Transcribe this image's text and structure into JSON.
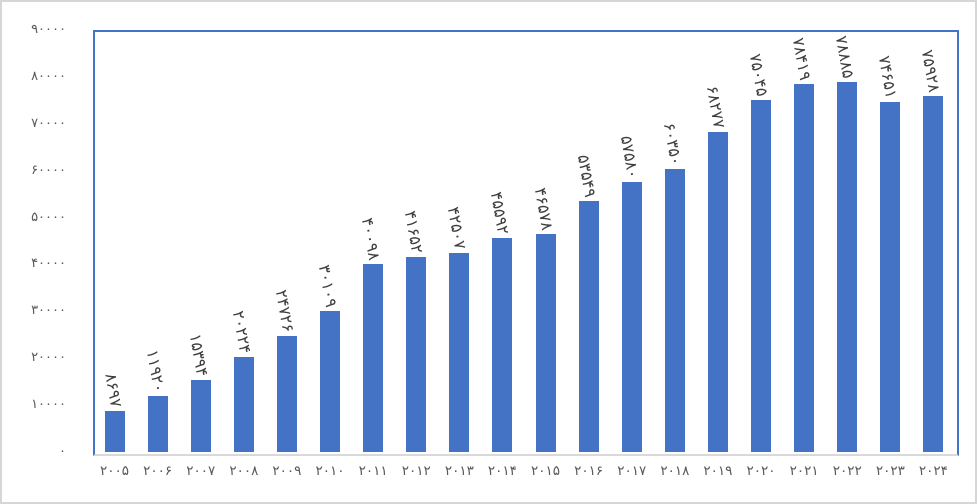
{
  "chart_data": {
    "type": "bar",
    "title": "",
    "xlabel": "",
    "ylabel": "",
    "legend": "none",
    "grid": false,
    "ylim": [
      0,
      90000
    ],
    "categories": [
      2005,
      2006,
      2007,
      2008,
      2009,
      2010,
      2011,
      2012,
      2013,
      2014,
      2015,
      2016,
      2017,
      2018,
      2019,
      2020,
      2021,
      2022,
      2023,
      2024
    ],
    "category_labels": [
      "۲۰۰۵",
      "۲۰۰۶",
      "۲۰۰۷",
      "۲۰۰۸",
      "۲۰۰۹",
      "۲۰۱۰",
      "۲۰۱۱",
      "۲۰۱۲",
      "۲۰۱۳",
      "۲۰۱۴",
      "۲۰۱۵",
      "۲۰۱۶",
      "۲۰۱۷",
      "۲۰۱۸",
      "۲۰۱۹",
      "۲۰۲۰",
      "۲۰۲۱",
      "۲۰۲۲",
      "۲۰۲۳",
      "۲۰۲۴"
    ],
    "values": [
      8697,
      11920,
      15394,
      20224,
      24726,
      30109,
      40098,
      41652,
      42507,
      45592,
      46578,
      53549,
      57580,
      60350,
      68277,
      75045,
      78419,
      78885,
      74651,
      75928
    ],
    "value_labels": [
      "۸۶۹۷",
      "۱۱۹۲۰",
      "۱۵۳۹۴",
      "۲۰۲۲۴",
      "۲۴۷۲۶",
      "۳۰۱۰۹",
      "۴۰۰۹۸",
      "۴۱۶۵۲",
      "۴۲۵۰۷",
      "۴۵۵۹۲",
      "۴۶۵۷۸",
      "۵۳۵۴۹",
      "۵۷۵۸۰",
      "۶۰۳۵۰",
      "۶۸۲۷۷",
      "۷۵۰۴۵",
      "۷۸۴۱۹",
      "۷۸۸۸۵",
      "۷۴۶۵۱",
      "۷۵۹۲۸"
    ],
    "y_tick_values": [
      0,
      10000,
      20000,
      30000,
      40000,
      50000,
      60000,
      70000,
      80000,
      90000
    ],
    "y_tick_labels": [
      "۰",
      "۱۰۰۰۰",
      "۲۰۰۰۰",
      "۳۰۰۰۰",
      "۴۰۰۰۰",
      "۵۰۰۰۰",
      "۶۰۰۰۰",
      "۷۰۰۰۰",
      "۸۰۰۰۰",
      "۹۰۰۰۰"
    ],
    "colors": {
      "bar": "#4472C4",
      "plot_border": "#4472C4",
      "axis_line": "#D9D9D9",
      "tick_label": "#595959",
      "data_label": "#3F3F3F",
      "outer_border": "#D6D6D6",
      "background": "#FFFFFF"
    }
  }
}
